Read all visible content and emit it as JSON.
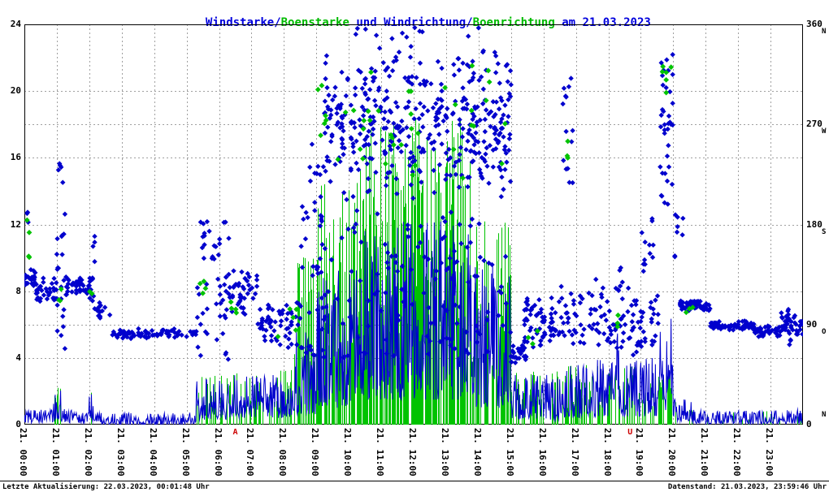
{
  "title": {
    "parts": [
      {
        "text": "Windstarke/",
        "color": "#0000dd"
      },
      {
        "text": "Boenstarke",
        "color": "#00bb00"
      },
      {
        "text": " und Windrichtung/",
        "color": "#0000dd"
      },
      {
        "text": "Boenrichtung",
        "color": "#00bb00"
      },
      {
        "text": " am 21.03.2023",
        "color": "#0000dd"
      }
    ]
  },
  "footer": {
    "last_update": "Letzte Aktualisierung: 22.03.2023, 00:01:48 Uhr",
    "data_state": "Datenstand: 21.03.2023, 23:59:46 Uhr"
  },
  "chart_data": {
    "type": "scatter",
    "title": "Windstarke/Boenstarke und Windrichtung/Boenrichtung am 21.03.2023",
    "grid_color": "#a0a0a0",
    "x": {
      "unit": "hours",
      "min": 0,
      "max": 24,
      "tick_labels": [
        "21. 00:00",
        "21. 01:00",
        "21. 02:00",
        "21. 03:00",
        "21. 04:00",
        "21. 05:00",
        "21. 06:00",
        "21. 07:00",
        "21. 08:00",
        "21. 09:00",
        "21. 10:00",
        "21. 11:00",
        "21. 12:00",
        "21. 13:00",
        "21. 14:00",
        "21. 15:00",
        "21. 16:00",
        "21. 17:00",
        "21. 18:00",
        "21. 19:00",
        "21. 20:00",
        "21. 21:00",
        "21. 22:00",
        "21. 23:00"
      ]
    },
    "y_left": {
      "min": 0,
      "max": 24,
      "ticks": [
        0,
        4,
        8,
        12,
        16,
        20,
        24
      ],
      "gridlines": [
        4,
        8,
        12,
        16,
        20
      ]
    },
    "y_right": {
      "min": 0,
      "max": 360,
      "ticks": [
        0,
        90,
        180,
        270,
        360
      ],
      "gridlines": [
        90,
        180,
        270
      ],
      "compass": [
        {
          "value": 360,
          "label": "N"
        },
        {
          "value": 270,
          "label": "W"
        },
        {
          "value": 180,
          "label": "S"
        },
        {
          "value": 90,
          "label": "O"
        },
        {
          "value": 0,
          "label": "N"
        }
      ]
    },
    "sun_markers": [
      {
        "label": "A",
        "hour": 6.5,
        "color": "#cc0000"
      },
      {
        "label": "U",
        "hour": 18.67,
        "color": "#cc0000"
      }
    ],
    "cluster_format": "[startHour, endHour, count, directionMinDeg, directionMaxDeg, centerWeighted]",
    "envelope_format": "[startHour, endHour, minSpeed, maxSpeed]",
    "spike_format": "[startHour, endHour, probabilityPerMinute, minSpeed, maxSpeed]",
    "series": [
      {
        "name": "Windrichtung",
        "type": "scatter",
        "marker": "diamond",
        "axis": "right",
        "color": "#0000cd",
        "clusters": [
          [
            0.0,
            0.35,
            26,
            122,
            142,
            1
          ],
          [
            0.05,
            0.15,
            3,
            178,
            192,
            0
          ],
          [
            0.35,
            1.0,
            34,
            110,
            132,
            1
          ],
          [
            1.0,
            1.25,
            26,
            66,
            256,
            0
          ],
          [
            1.25,
            2.05,
            40,
            113,
            135,
            1
          ],
          [
            2.0,
            2.17,
            13,
            103,
            174,
            0
          ],
          [
            2.17,
            2.7,
            16,
            92,
            110,
            1
          ],
          [
            2.7,
            5.3,
            75,
            77,
            87,
            1
          ],
          [
            5.3,
            6.3,
            52,
            57,
            186,
            0
          ],
          [
            6.3,
            7.2,
            44,
            94,
            144,
            1
          ],
          [
            7.2,
            8.5,
            58,
            64,
            112,
            1
          ],
          [
            8.5,
            9.3,
            55,
            60,
            256,
            0
          ],
          [
            9.2,
            15.0,
            420,
            196,
            345,
            1
          ],
          [
            9.3,
            15.0,
            120,
            60,
            196,
            0
          ],
          [
            10.0,
            14.5,
            12,
            345,
            358,
            0
          ],
          [
            15.0,
            15.5,
            26,
            52,
            76,
            1
          ],
          [
            15.4,
            16.5,
            66,
            64,
            116,
            1
          ],
          [
            16.6,
            16.9,
            14,
            208,
            316,
            0
          ],
          [
            16.5,
            18.05,
            58,
            60,
            132,
            1
          ],
          [
            18.05,
            19.55,
            62,
            58,
            126,
            1
          ],
          [
            18.3,
            18.45,
            10,
            60,
            146,
            0
          ],
          [
            19.0,
            19.4,
            12,
            132,
            186,
            0
          ],
          [
            19.6,
            20.0,
            38,
            180,
            338,
            0
          ],
          [
            20.0,
            20.3,
            8,
            148,
            192,
            0
          ],
          [
            20.2,
            21.15,
            55,
            102,
            112,
            1
          ],
          [
            21.15,
            22.5,
            70,
            84,
            94,
            1
          ],
          [
            22.5,
            23.3,
            44,
            78,
            89,
            1
          ],
          [
            23.3,
            24.0,
            36,
            72,
            104,
            1
          ],
          [
            23.5,
            23.65,
            8,
            66,
            106,
            0
          ]
        ]
      },
      {
        "name": "Boenrichtung",
        "type": "scatter",
        "marker": "diamond",
        "axis": "right",
        "color": "#00c300",
        "clusters": [
          [
            0.03,
            0.2,
            4,
            124,
            188,
            0
          ],
          [
            1.0,
            1.15,
            3,
            110,
            122,
            0
          ],
          [
            2.0,
            2.12,
            2,
            114,
            126,
            0
          ],
          [
            5.35,
            5.65,
            4,
            108,
            142,
            0
          ],
          [
            6.3,
            6.6,
            4,
            94,
            116,
            0
          ],
          [
            7.5,
            8.5,
            5,
            78,
            106,
            0
          ],
          [
            9.0,
            15.0,
            42,
            208,
            332,
            1
          ],
          [
            15.5,
            16.0,
            3,
            70,
            86,
            0
          ],
          [
            16.7,
            16.85,
            3,
            238,
            256,
            0
          ],
          [
            18.2,
            18.5,
            3,
            84,
            100,
            0
          ],
          [
            19.65,
            19.95,
            6,
            298,
            326,
            0
          ],
          [
            20.3,
            20.6,
            3,
            100,
            112,
            0
          ]
        ]
      },
      {
        "name": "Windstarke",
        "type": "line",
        "axis": "left",
        "color": "#0000cd",
        "envelope": [
          [
            0.0,
            0.9,
            0.1,
            0.9
          ],
          [
            0.9,
            1.2,
            0.2,
            2.1
          ],
          [
            1.2,
            2.0,
            0.1,
            1.0
          ],
          [
            2.0,
            2.2,
            0.2,
            1.9
          ],
          [
            2.2,
            5.3,
            0.0,
            0.7
          ],
          [
            5.3,
            6.3,
            0.3,
            2.7
          ],
          [
            6.3,
            8.3,
            0.4,
            3.0
          ],
          [
            8.3,
            9.0,
            0.6,
            6.5
          ],
          [
            9.0,
            10.5,
            1.0,
            9.5
          ],
          [
            10.5,
            13.8,
            1.5,
            12.2
          ],
          [
            13.8,
            15.0,
            1.0,
            9.5
          ],
          [
            15.0,
            16.5,
            0.3,
            3.0
          ],
          [
            16.5,
            17.5,
            0.4,
            3.6
          ],
          [
            17.5,
            18.2,
            0.5,
            4.0
          ],
          [
            18.2,
            18.35,
            1.5,
            7.6
          ],
          [
            18.35,
            19.6,
            0.5,
            4.0
          ],
          [
            19.6,
            20.0,
            0.8,
            7.4
          ],
          [
            20.0,
            20.6,
            0.2,
            1.6
          ],
          [
            20.6,
            24.0,
            0.05,
            0.9
          ]
        ]
      },
      {
        "name": "Boenstarke",
        "type": "spikes",
        "axis": "left",
        "color": "#00c300",
        "spikes": [
          [
            0.9,
            1.15,
            0.25,
            1.4,
            2.2
          ],
          [
            2.0,
            2.15,
            0.3,
            1.4,
            2.1
          ],
          [
            5.3,
            6.5,
            0.3,
            1.2,
            3.1
          ],
          [
            6.5,
            8.3,
            0.25,
            1.0,
            3.3
          ],
          [
            8.3,
            9.0,
            0.5,
            3.0,
            10.5
          ],
          [
            9.0,
            10.3,
            0.55,
            4.0,
            14.5
          ],
          [
            10.3,
            13.8,
            0.65,
            5.0,
            18.7
          ],
          [
            13.8,
            15.0,
            0.55,
            3.0,
            12.5
          ],
          [
            15.0,
            16.5,
            0.3,
            1.2,
            3.2
          ],
          [
            16.5,
            19.5,
            0.3,
            1.0,
            3.6
          ],
          [
            19.55,
            19.95,
            0.5,
            1.8,
            3.3
          ],
          [
            20.0,
            20.6,
            0.15,
            0.5,
            1.5
          ],
          [
            20.6,
            24.0,
            0.04,
            0.3,
            0.9
          ]
        ]
      }
    ]
  }
}
